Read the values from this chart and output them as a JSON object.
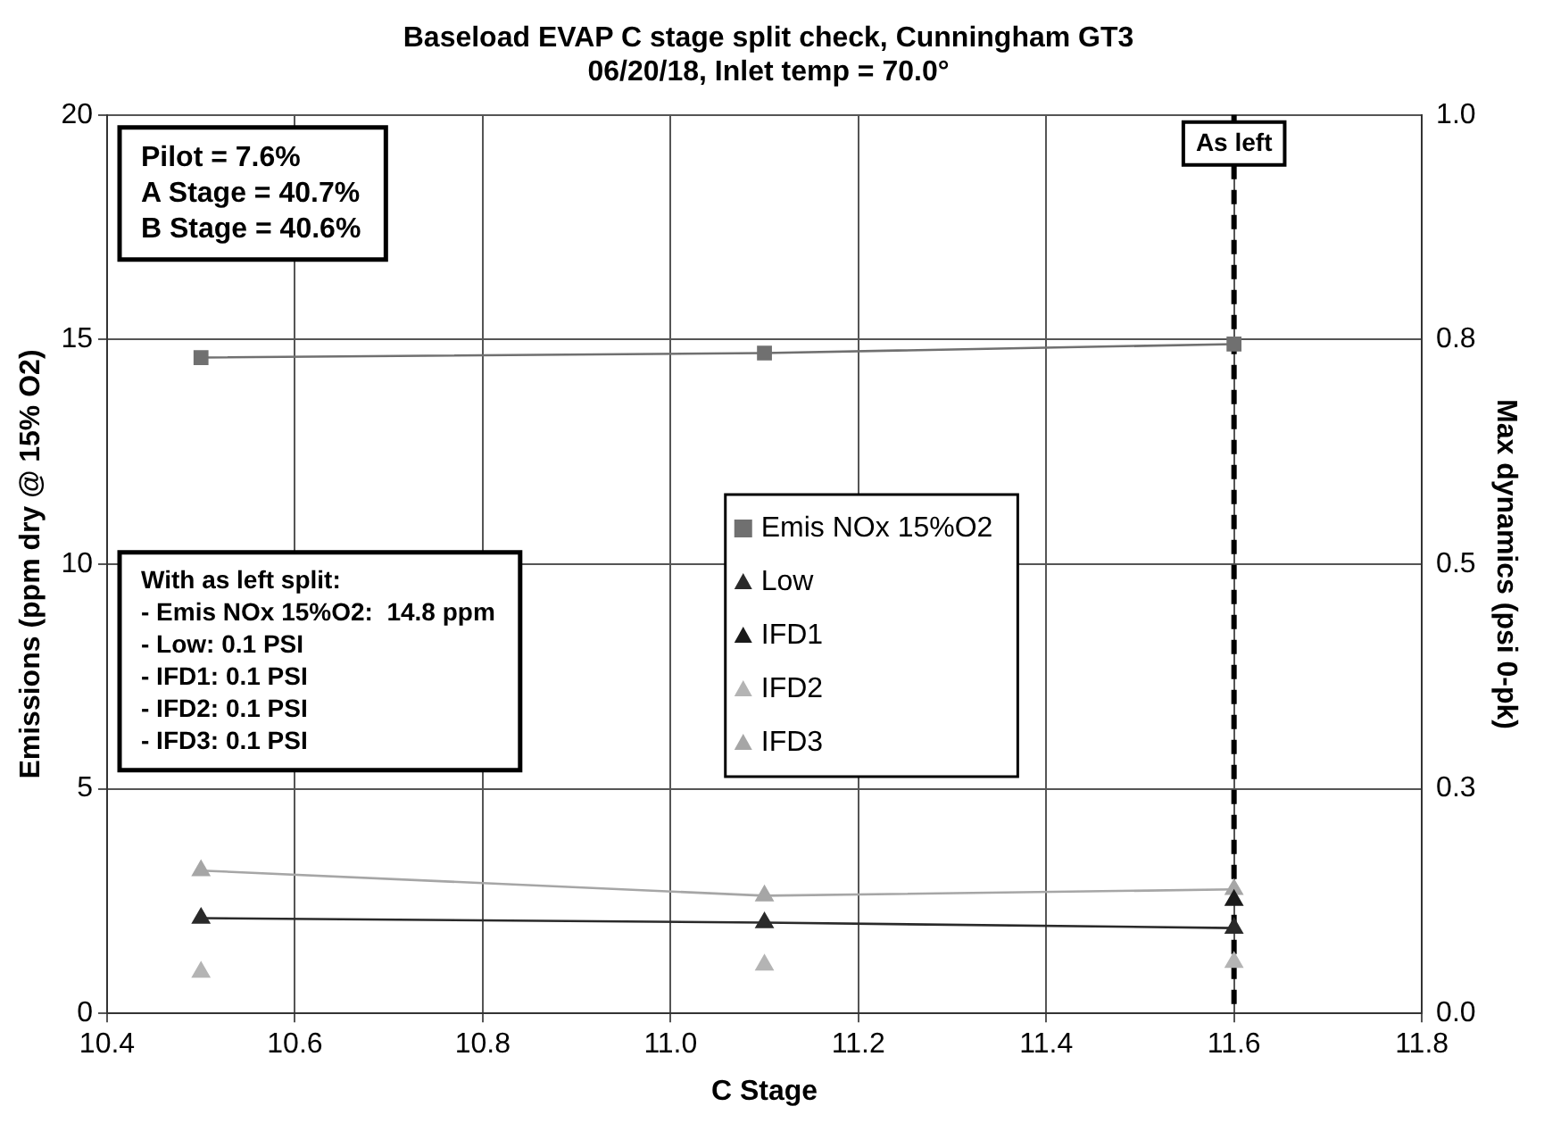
{
  "chart_data": {
    "type": "line",
    "title": "Baseload EVAP C stage split check, Cunningham GT3",
    "subtitle": "06/20/18, Inlet temp = 70.0°",
    "xlabel": "C Stage",
    "ylabel": "Emissions (ppm dry @ 15% O2)",
    "y2label": "Max dynamics (psi 0-pk)",
    "x": [
      10.5,
      11.1,
      11.6
    ],
    "series": [
      {
        "name": "Emis NOx 15%O2",
        "color": "#707070",
        "marker": "square",
        "values": [
          14.6,
          14.7,
          14.9
        ]
      },
      {
        "name": "Low",
        "color": "#2a2a2a",
        "marker": "triangle",
        "axis": "y2",
        "values": [
          0.106,
          0.101,
          0.095
        ]
      },
      {
        "name": "IFD1",
        "color": "#1a1a1a",
        "marker": "triangle",
        "axis": "y2",
        "type": "scatter",
        "values": [
          null,
          null,
          0.126
        ]
      },
      {
        "name": "IFD2",
        "color": "#b4b4b4",
        "marker": "triangle",
        "axis": "y2",
        "type": "scatter",
        "values": [
          0.046,
          0.054,
          0.057
        ]
      },
      {
        "name": "IFD3",
        "color": "#a6a6a6",
        "marker": "triangle",
        "axis": "y2",
        "values": [
          0.159,
          0.131,
          0.138
        ]
      }
    ],
    "xlim": [
      10.4,
      11.8
    ],
    "xticks": [
      10.4,
      10.6,
      10.8,
      {
        "value": 11,
        "label": "11.0"
      },
      11.2,
      11.4,
      11.6,
      11.8
    ],
    "ylim": [
      0,
      20
    ],
    "yticks": [
      0,
      5,
      10,
      15,
      20
    ],
    "y2lim": [
      0,
      1
    ],
    "y2ticks": [
      {
        "value": 0,
        "label": "0.0"
      },
      {
        "value": 0.25,
        "label": "0.3"
      },
      {
        "value": 0.5,
        "label": "0.5"
      },
      {
        "value": 0.75,
        "label": "0.8"
      },
      {
        "value": 1,
        "label": "1.0"
      }
    ],
    "ref_lines": [
      {
        "axis": "x",
        "value": 11.6,
        "label": "As left",
        "color": "#000000",
        "line_style": "dashed"
      }
    ],
    "annotations": [
      "Pilot = 7.6%\nA Stage = 40.7%\nB Stage = 40.6%",
      "With as left split:\n- Emis NOx 15%O2:  14.8 ppm\n- Low: 0.1 PSI\n- IFD1: 0.1 PSI\n- IFD2: 0.1 PSI\n- IFD3: 0.1 PSI"
    ],
    "grid": true,
    "legend": "center"
  }
}
